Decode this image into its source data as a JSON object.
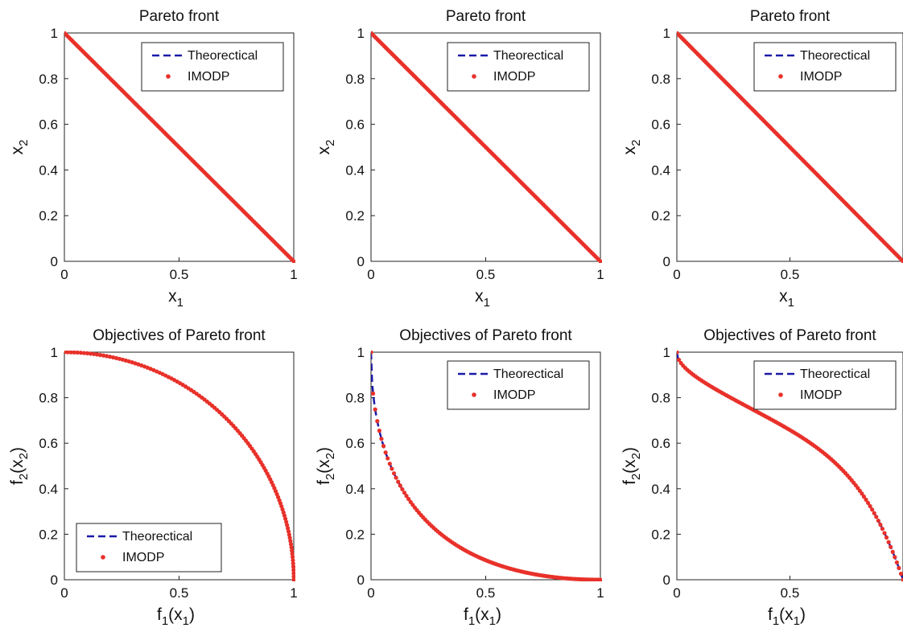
{
  "chart_data": [
    {
      "type": "scatter",
      "title": "Pareto front",
      "xlabel": "x_1",
      "ylabel": "x_2",
      "xlim": [
        0,
        1
      ],
      "ylim": [
        0,
        1
      ],
      "xticks": [
        "0",
        "0.5",
        "1"
      ],
      "yticks": [
        "0",
        "0.2",
        "0.4",
        "0.6",
        "0.8",
        "1"
      ],
      "grid": false,
      "legend_position": "top-right",
      "series": [
        {
          "name": "Theorectical",
          "style": "dashed-line",
          "color": "#1a1aa8",
          "curve": "linear"
        },
        {
          "name": "IMODP",
          "style": "points",
          "color": "#e8312a",
          "curve": "linear"
        }
      ]
    },
    {
      "type": "scatter",
      "title": "Pareto front",
      "xlabel": "x_1",
      "ylabel": "x_2",
      "xlim": [
        0,
        1
      ],
      "ylim": [
        0,
        1
      ],
      "xticks": [
        "0",
        "0.5",
        "1"
      ],
      "yticks": [
        "0",
        "0.2",
        "0.4",
        "0.6",
        "0.8",
        "1"
      ],
      "grid": false,
      "legend_position": "top-right",
      "series": [
        {
          "name": "Theorectical",
          "style": "dashed-line",
          "color": "#1a1aa8",
          "curve": "linear"
        },
        {
          "name": "IMODP",
          "style": "points",
          "color": "#e8312a",
          "curve": "linear"
        }
      ]
    },
    {
      "type": "scatter",
      "title": "Pareto front",
      "xlabel": "x_1",
      "ylabel": "x_2",
      "xlim": [
        0,
        1
      ],
      "ylim": [
        0,
        1
      ],
      "xticks": [
        "0",
        "0.5"
      ],
      "yticks": [
        "0",
        "0.2",
        "0.4",
        "0.6",
        "0.8",
        "1"
      ],
      "grid": false,
      "legend_position": "top-right",
      "series": [
        {
          "name": "Theorectical",
          "style": "dashed-line",
          "color": "#1a1aa8",
          "curve": "linear"
        },
        {
          "name": "IMODP",
          "style": "points",
          "color": "#e8312a",
          "curve": "linear"
        }
      ]
    },
    {
      "type": "scatter",
      "title": "Objectives of Pareto front",
      "xlabel": "f_1(x_1)",
      "ylabel": "f_2(x_2)",
      "xlim": [
        0,
        1
      ],
      "ylim": [
        0,
        1
      ],
      "xticks": [
        "0",
        "0.5",
        "1"
      ],
      "yticks": [
        "0",
        "0.2",
        "0.4",
        "0.6",
        "0.8",
        "1"
      ],
      "grid": false,
      "legend_position": "bottom-left",
      "series": [
        {
          "name": "Theorectical",
          "style": "dashed-line",
          "color": "#1a1aa8",
          "curve": "concave"
        },
        {
          "name": "IMODP",
          "style": "points",
          "color": "#e8312a",
          "curve": "concave"
        }
      ]
    },
    {
      "type": "scatter",
      "title": "Objectives of Pareto front",
      "xlabel": "f_1(x_1)",
      "ylabel": "f_2(x_2)",
      "xlim": [
        0,
        1
      ],
      "ylim": [
        0,
        1
      ],
      "xticks": [
        "0",
        "0.5",
        "1"
      ],
      "yticks": [
        "0",
        "0.2",
        "0.4",
        "0.6",
        "0.8",
        "1"
      ],
      "grid": false,
      "legend_position": "top-right",
      "series": [
        {
          "name": "Theorectical",
          "style": "dashed-line",
          "color": "#1a1aa8",
          "curve": "convex"
        },
        {
          "name": "IMODP",
          "style": "points",
          "color": "#e8312a",
          "curve": "convex"
        }
      ]
    },
    {
      "type": "scatter",
      "title": "Objectives of Pareto front",
      "xlabel": "f_1(x_1)",
      "ylabel": "f_2(x_2)",
      "xlim": [
        0,
        1
      ],
      "ylim": [
        0,
        1
      ],
      "xticks": [
        "0",
        "0.5"
      ],
      "yticks": [
        "0",
        "0.2",
        "0.4",
        "0.6",
        "0.8",
        "1"
      ],
      "grid": false,
      "legend_position": "top-right",
      "series": [
        {
          "name": "Theorectical",
          "style": "dashed-line",
          "color": "#1a1aa8",
          "curve": "mixed"
        },
        {
          "name": "IMODP",
          "style": "points",
          "color": "#e8312a",
          "curve": "mixed"
        }
      ]
    }
  ]
}
